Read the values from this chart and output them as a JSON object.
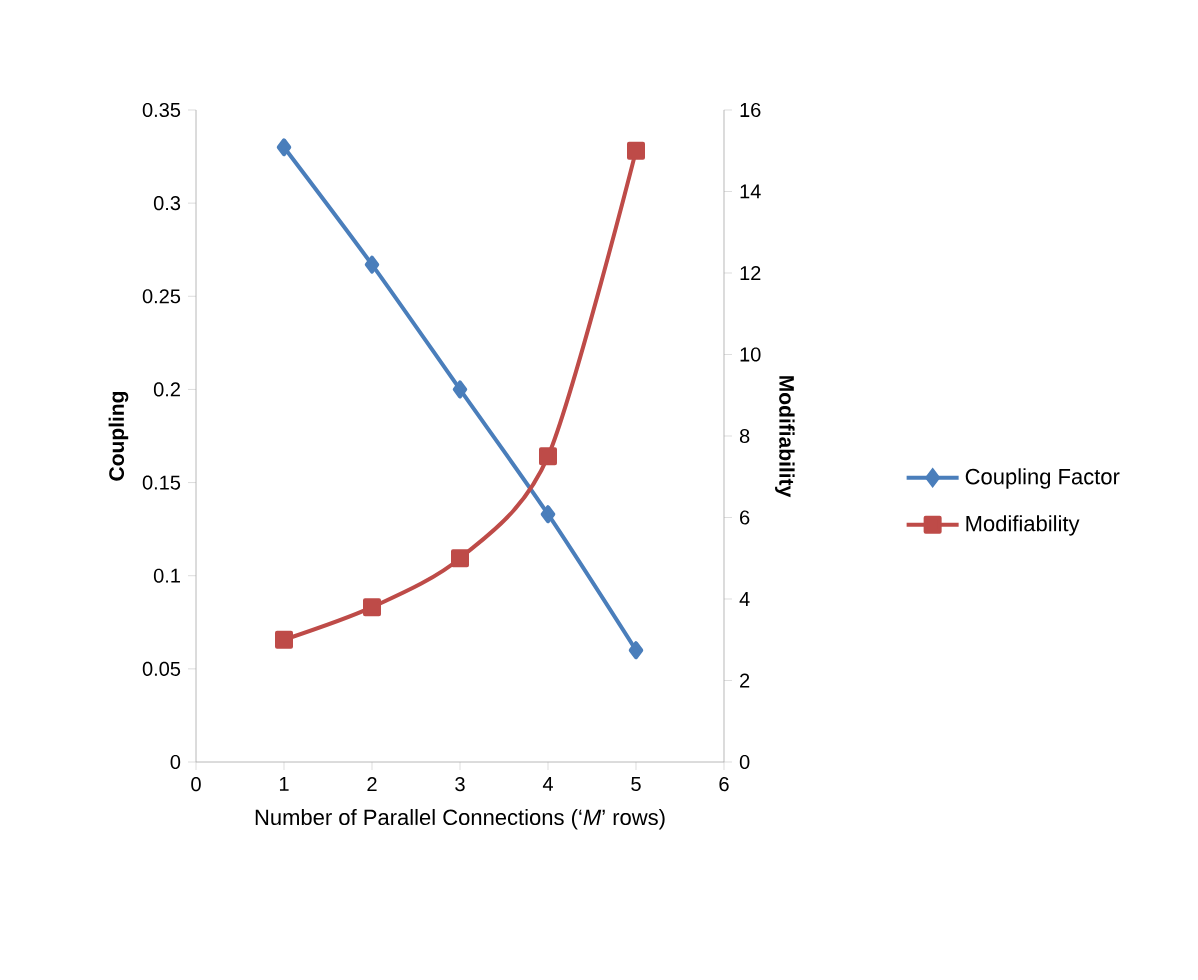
{
  "chart_data": {
    "type": "line",
    "xlabel": "Number of Parallel Connections (‘*M*’ rows)",
    "ylabel": "Coupling",
    "y2label": "Modifiability",
    "x": [
      1,
      2,
      3,
      4,
      5
    ],
    "series": [
      {
        "name": "Coupling Factor",
        "color": "#4a7ebb",
        "marker": "diamond",
        "values": [
          0.33,
          0.267,
          0.2,
          0.133,
          0.06
        ]
      },
      {
        "name": "Modifiability",
        "color": "#be4b48",
        "marker": "square",
        "axis": "y2",
        "values": [
          3,
          3.8,
          5,
          7.5,
          15
        ]
      }
    ],
    "xlim": [
      0,
      6
    ],
    "xticks": [
      0,
      1,
      2,
      3,
      4,
      5,
      6
    ],
    "ylim": [
      0,
      0.35
    ],
    "yticks": [
      0,
      0.05,
      0.1,
      0.15,
      0.2,
      0.25,
      0.3,
      0.35
    ],
    "y2lim": [
      0,
      16
    ],
    "y2ticks": [
      0,
      2,
      4,
      6,
      8,
      10,
      12,
      14,
      16
    ],
    "grid": false,
    "legend": "right"
  }
}
